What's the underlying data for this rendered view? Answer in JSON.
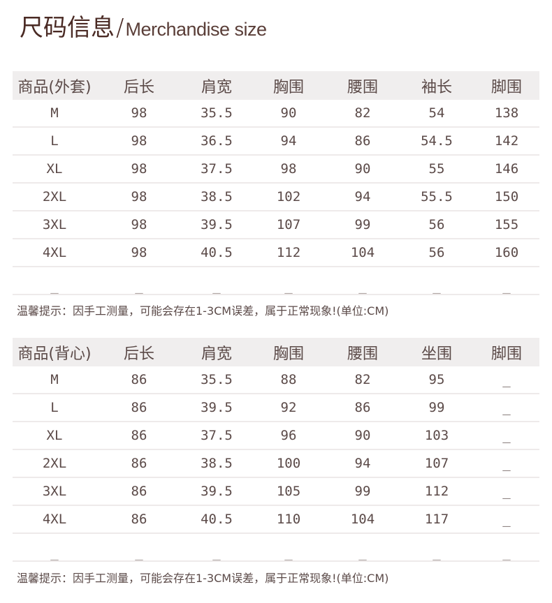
{
  "title": {
    "cn": "尺码信息",
    "slash": "/",
    "en": "Merchandise size"
  },
  "tables": [
    {
      "headers": [
        "商品(外套)",
        "后长",
        "肩宽",
        "胸围",
        "腰围",
        "袖长",
        "脚围"
      ],
      "rows": [
        [
          "M",
          "98",
          "35.5",
          "90",
          "82",
          "54",
          "138"
        ],
        [
          "L",
          "98",
          "36.5",
          "94",
          "86",
          "54.5",
          "142"
        ],
        [
          "XL",
          "98",
          "37.5",
          "98",
          "90",
          "55",
          "146"
        ],
        [
          "2XL",
          "98",
          "38.5",
          "102",
          "94",
          "55.5",
          "150"
        ],
        [
          "3XL",
          "98",
          "39.5",
          "107",
          "99",
          "56",
          "155"
        ],
        [
          "4XL",
          "98",
          "40.5",
          "112",
          "104",
          "56",
          "160"
        ],
        [
          "_",
          "_",
          "_",
          "_",
          "_",
          "_",
          "_"
        ]
      ],
      "note": "温馨提示：因手工测量，可能会存在1-3CM误差，属于正常现象!(单位:CM)"
    },
    {
      "headers": [
        "商品(背心)",
        "后长",
        "肩宽",
        "胸围",
        "腰围",
        "坐围",
        "脚围"
      ],
      "rows": [
        [
          "M",
          "86",
          "35.5",
          "88",
          "82",
          "95",
          "_"
        ],
        [
          "L",
          "86",
          "39.5",
          "92",
          "86",
          "99",
          "_"
        ],
        [
          "XL",
          "86",
          "37.5",
          "96",
          "90",
          "103",
          "_"
        ],
        [
          "2XL",
          "86",
          "38.5",
          "100",
          "94",
          "107",
          "_"
        ],
        [
          "3XL",
          "86",
          "39.5",
          "105",
          "99",
          "112",
          "_"
        ],
        [
          "4XL",
          "86",
          "40.5",
          "110",
          "104",
          "117",
          "_"
        ],
        [
          "_",
          "_",
          "_",
          "_",
          "_",
          "_",
          "_"
        ]
      ],
      "note": "温馨提示：因手工测量，可能会存在1-3CM误差，属于正常现象!(单位:CM)"
    }
  ]
}
